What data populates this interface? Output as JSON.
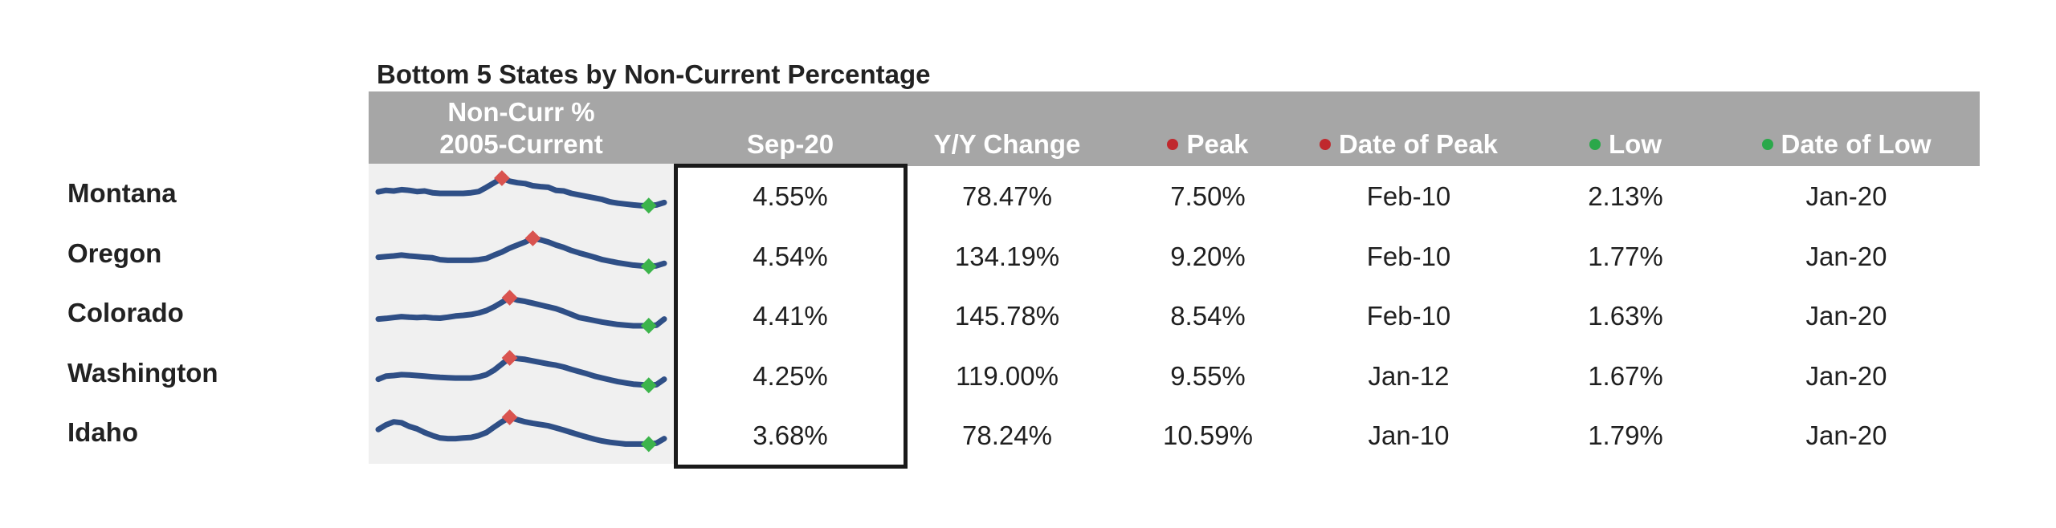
{
  "title": "Bottom 5 States by Non-Current Percentage",
  "headers": {
    "sparkline_line1": "Non-Curr %",
    "sparkline_line2": "2005-Current",
    "sep20": "Sep-20",
    "yy_change": "Y/Y Change",
    "peak": "Peak",
    "date_of_peak": "Date of Peak",
    "low": "Low",
    "date_of_low": "Date of Low"
  },
  "colors": {
    "header_bg": "#a6a6a6",
    "spark_line": "#2f4f86",
    "peak_marker": "#d9534f",
    "low_marker": "#3cb44b",
    "peak_dot": "#c0282d",
    "low_dot": "#2aa84a"
  },
  "rows": [
    {
      "state": "Montana",
      "sep20": "4.55%",
      "yy_change": "78.47%",
      "peak": "7.50%",
      "date_of_peak": "Feb-10",
      "low": "2.13%",
      "date_of_low": "Jan-20"
    },
    {
      "state": "Oregon",
      "sep20": "4.54%",
      "yy_change": "134.19%",
      "peak": "9.20%",
      "date_of_peak": "Feb-10",
      "low": "1.77%",
      "date_of_low": "Jan-20"
    },
    {
      "state": "Colorado",
      "sep20": "4.41%",
      "yy_change": "145.78%",
      "peak": "8.54%",
      "date_of_peak": "Feb-10",
      "low": "1.63%",
      "date_of_low": "Jan-20"
    },
    {
      "state": "Washington",
      "sep20": "4.25%",
      "yy_change": "119.00%",
      "peak": "9.55%",
      "date_of_peak": "Jan-12",
      "low": "1.67%",
      "date_of_low": "Jan-20"
    },
    {
      "state": "Idaho",
      "sep20": "3.68%",
      "yy_change": "78.24%",
      "peak": "10.59%",
      "date_of_peak": "Jan-10",
      "low": "1.79%",
      "date_of_low": "Jan-20"
    }
  ],
  "chart_data": {
    "type": "table",
    "title": "Bottom 5 States by Non-Current Percentage",
    "columns": [
      "",
      "Non-Curr % 2005-Current",
      "Sep-20",
      "Y/Y Change",
      "Peak",
      "Date of Peak",
      "Low",
      "Date of Low"
    ],
    "series_sparklines": [
      {
        "name": "Montana",
        "values": [
          0.55,
          0.6,
          0.58,
          0.62,
          0.6,
          0.56,
          0.58,
          0.52,
          0.5,
          0.5,
          0.5,
          0.5,
          0.52,
          0.56,
          0.7,
          0.85,
          1.0,
          0.9,
          0.85,
          0.82,
          0.75,
          0.72,
          0.7,
          0.6,
          0.58,
          0.5,
          0.45,
          0.4,
          0.35,
          0.3,
          0.22,
          0.18,
          0.15,
          0.12,
          0.1,
          0.1,
          0.12,
          0.2
        ]
      },
      {
        "name": "Oregon",
        "values": [
          0.38,
          0.4,
          0.42,
          0.45,
          0.42,
          0.4,
          0.38,
          0.36,
          0.3,
          0.28,
          0.28,
          0.28,
          0.28,
          0.3,
          0.34,
          0.45,
          0.55,
          0.68,
          0.78,
          0.88,
          1.0,
          0.95,
          0.88,
          0.78,
          0.7,
          0.6,
          0.52,
          0.45,
          0.38,
          0.3,
          0.25,
          0.2,
          0.16,
          0.12,
          0.1,
          0.08,
          0.1,
          0.18
        ]
      },
      {
        "name": "Colorado",
        "values": [
          0.3,
          0.32,
          0.35,
          0.38,
          0.36,
          0.35,
          0.36,
          0.34,
          0.33,
          0.36,
          0.4,
          0.42,
          0.45,
          0.5,
          0.58,
          0.7,
          0.85,
          1.0,
          0.92,
          0.88,
          0.82,
          0.76,
          0.7,
          0.64,
          0.55,
          0.45,
          0.35,
          0.3,
          0.25,
          0.2,
          0.16,
          0.12,
          0.1,
          0.08,
          0.08,
          0.08,
          0.1,
          0.3
        ]
      },
      {
        "name": "Washington",
        "values": [
          0.3,
          0.4,
          0.42,
          0.45,
          0.44,
          0.42,
          0.4,
          0.38,
          0.36,
          0.35,
          0.34,
          0.34,
          0.34,
          0.38,
          0.45,
          0.6,
          0.8,
          1.0,
          0.98,
          0.95,
          0.9,
          0.85,
          0.8,
          0.76,
          0.7,
          0.62,
          0.55,
          0.48,
          0.4,
          0.34,
          0.28,
          0.22,
          0.18,
          0.14,
          0.12,
          0.1,
          0.12,
          0.3
        ]
      },
      {
        "name": "Idaho",
        "values": [
          0.6,
          0.75,
          0.85,
          0.82,
          0.7,
          0.62,
          0.5,
          0.4,
          0.32,
          0.3,
          0.3,
          0.32,
          0.34,
          0.4,
          0.5,
          0.68,
          0.85,
          1.0,
          0.92,
          0.85,
          0.8,
          0.76,
          0.72,
          0.65,
          0.58,
          0.5,
          0.42,
          0.35,
          0.28,
          0.22,
          0.18,
          0.15,
          0.12,
          0.12,
          0.12,
          0.12,
          0.15,
          0.3
        ]
      }
    ]
  }
}
